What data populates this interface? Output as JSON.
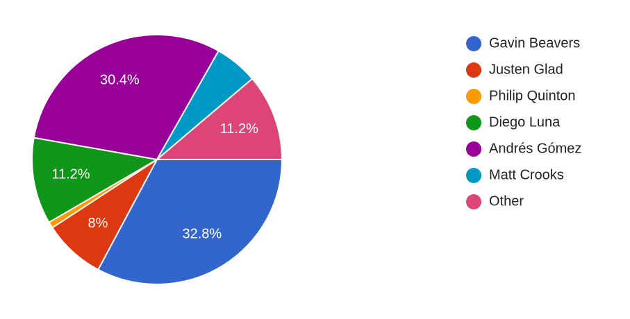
{
  "chart_data": {
    "type": "pie",
    "categories": [
      "Gavin Beavers",
      "Justen Glad",
      "Philip Quinton",
      "Diego Luna",
      "Andrés Gómez",
      "Matt Crooks",
      "Other"
    ],
    "values": [
      32.8,
      8,
      0.8,
      11.2,
      30.4,
      5.6,
      11.2
    ],
    "value_labels": [
      "32.8%",
      "8%",
      null,
      "11.2%",
      "30.4%",
      null,
      "11.2%"
    ],
    "colors": [
      "#3366cc",
      "#dc3912",
      "#ff9900",
      "#109618",
      "#990099",
      "#0099c6",
      "#dd4477"
    ],
    "legend": "right"
  }
}
